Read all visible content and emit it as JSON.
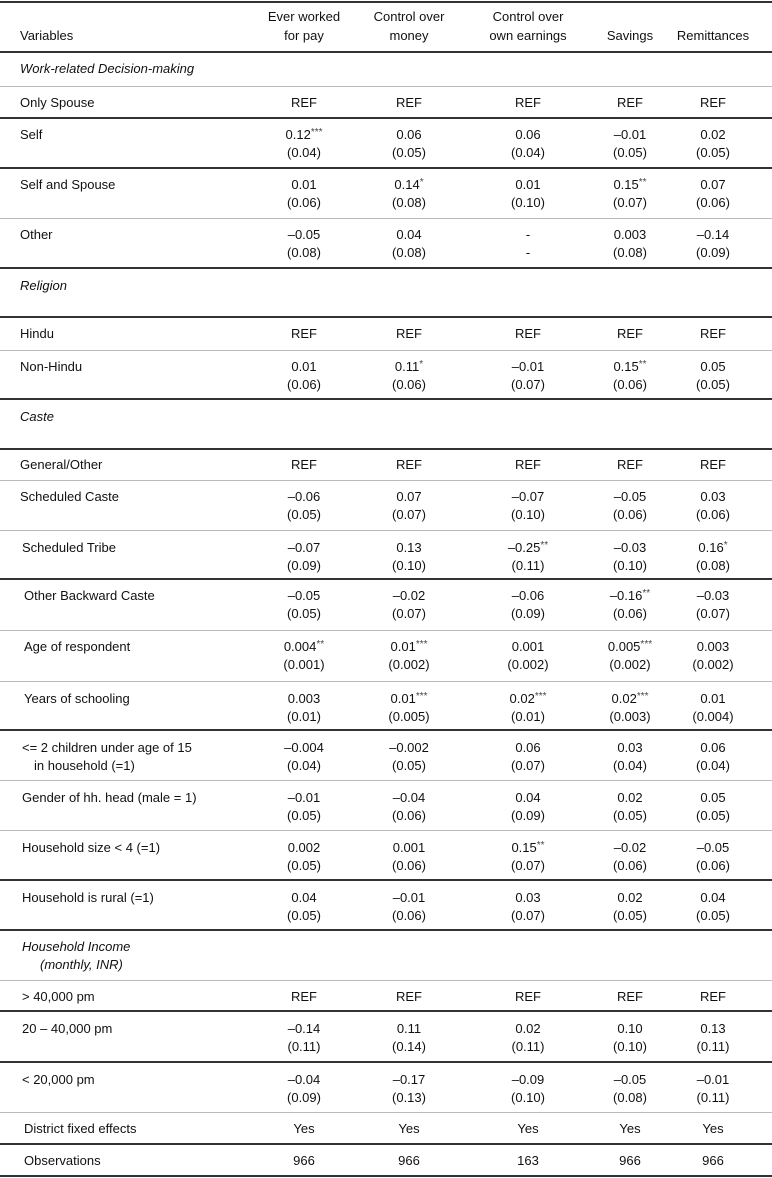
{
  "headers": {
    "variables": "Variables",
    "columns": [
      [
        "Ever worked",
        "for pay"
      ],
      [
        "Control over",
        "money"
      ],
      [
        "Control over",
        "own earnings"
      ],
      [
        "",
        "Savings"
      ],
      [
        "",
        "Remittances"
      ]
    ]
  },
  "rows": [
    {
      "section": "Work-related Decision-making"
    },
    {
      "label": "Only Spouse",
      "coef": [
        "REF",
        "REF",
        "REF",
        "REF",
        "REF"
      ]
    },
    {
      "label": "Self",
      "coef": [
        "0.12***",
        "0.06",
        "0.06",
        "–0.01",
        "0.02"
      ],
      "se": [
        "(0.04)",
        "(0.05)",
        "(0.04)",
        "(0.05)",
        "(0.05)"
      ]
    },
    {
      "label": "Self and Spouse",
      "coef": [
        "0.01",
        "0.14*",
        "0.01",
        "0.15**",
        "0.07"
      ],
      "se": [
        "(0.06)",
        "(0.08)",
        "(0.10)",
        "(0.07)",
        "(0.06)"
      ]
    },
    {
      "label": "Other",
      "coef": [
        "–0.05",
        "0.04",
        "-",
        "0.003",
        "–0.14"
      ],
      "se": [
        "(0.08)",
        "(0.08)",
        "-",
        "(0.08)",
        "(0.09)"
      ]
    },
    {
      "section": "Religion"
    },
    {
      "label": "Hindu",
      "coef": [
        "REF",
        "REF",
        "REF",
        "REF",
        "REF"
      ]
    },
    {
      "label": "Non-Hindu",
      "coef": [
        "0.01",
        "0.11*",
        "–0.01",
        "0.15**",
        "0.05"
      ],
      "se": [
        "(0.06)",
        "(0.06)",
        "(0.07)",
        "(0.06)",
        "(0.05)"
      ]
    },
    {
      "section": "Caste"
    },
    {
      "label": "General/Other",
      "coef": [
        "REF",
        "REF",
        "REF",
        "REF",
        "REF"
      ]
    },
    {
      "label": "Scheduled Caste",
      "coef": [
        "–0.06",
        "0.07",
        "–0.07",
        "–0.05",
        "0.03"
      ],
      "se": [
        "(0.05)",
        "(0.07)",
        "(0.10)",
        "(0.06)",
        "(0.06)"
      ]
    },
    {
      "label": "Scheduled Tribe",
      "coef": [
        "–0.07",
        "0.13",
        "–0.25**",
        "–0.03",
        "0.16*"
      ],
      "se": [
        "(0.09)",
        "(0.10)",
        "(0.11)",
        "(0.10)",
        "(0.08)"
      ]
    },
    {
      "label": "Other Backward Caste",
      "coef": [
        "–0.05",
        "–0.02",
        "–0.06",
        "–0.16**",
        "–0.03"
      ],
      "se": [
        "(0.05)",
        "(0.07)",
        "(0.09)",
        "(0.06)",
        "(0.07)"
      ]
    },
    {
      "label": "Age of respondent",
      "coef": [
        "0.004**",
        "0.01***",
        "0.001",
        "0.005***",
        "0.003"
      ],
      "se": [
        "(0.001)",
        "(0.002)",
        "(0.002)",
        "(0.002)",
        "(0.002)"
      ]
    },
    {
      "label": "Years of schooling",
      "coef": [
        "0.003",
        "0.01***",
        "0.02***",
        "0.02***",
        "0.01"
      ],
      "se": [
        "(0.01)",
        "(0.005)",
        "(0.01)",
        "(0.003)",
        "(0.004)"
      ]
    },
    {
      "label": "<= 2 children under age of 15",
      "label2": "in household (=1)",
      "coef": [
        "–0.004",
        "–0.002",
        "0.06",
        "0.03",
        "0.06"
      ],
      "se": [
        "(0.04)",
        "(0.05)",
        "(0.07)",
        "(0.04)",
        "(0.04)"
      ]
    },
    {
      "label": "Gender of hh. head (male = 1)",
      "coef": [
        "–0.01",
        "–0.04",
        "0.04",
        "0.02",
        "0.05"
      ],
      "se": [
        "(0.05)",
        "(0.06)",
        "(0.09)",
        "(0.05)",
        "(0.05)"
      ]
    },
    {
      "label": "Household size < 4 (=1)",
      "coef": [
        "0.002",
        "0.001",
        "0.15**",
        "–0.02",
        "–0.05"
      ],
      "se": [
        "(0.05)",
        "(0.06)",
        "(0.07)",
        "(0.06)",
        "(0.06)"
      ]
    },
    {
      "label": "Household is rural (=1)",
      "coef": [
        "0.04",
        "–0.01",
        "0.03",
        "0.02",
        "0.04"
      ],
      "se": [
        "(0.05)",
        "(0.06)",
        "(0.07)",
        "(0.05)",
        "(0.05)"
      ]
    },
    {
      "section": "Household Income",
      "section2": "(monthly, INR)"
    },
    {
      "label": "> 40,000 pm",
      "coef": [
        "REF",
        "REF",
        "REF",
        "REF",
        "REF"
      ]
    },
    {
      "label": "20 – 40,000 pm",
      "coef": [
        "–0.14",
        "0.11",
        "0.02",
        "0.10",
        "0.13"
      ],
      "se": [
        "(0.11)",
        "(0.14)",
        "(0.11)",
        "(0.10)",
        "(0.11)"
      ]
    },
    {
      "label": "< 20,000 pm",
      "coef": [
        "–0.04",
        "–0.17",
        "–0.09",
        "–0.05",
        "–0.01"
      ],
      "se": [
        "(0.09)",
        "(0.13)",
        "(0.10)",
        "(0.08)",
        "(0.11)"
      ]
    },
    {
      "label": "District fixed effects",
      "coef": [
        "Yes",
        "Yes",
        "Yes",
        "Yes",
        "Yes"
      ]
    },
    {
      "label": "Observations",
      "coef": [
        "966",
        "966",
        "163",
        "966",
        "966"
      ]
    }
  ]
}
